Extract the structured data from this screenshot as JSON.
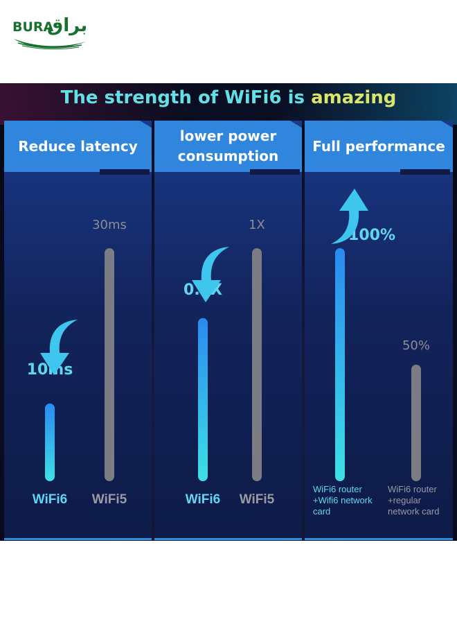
{
  "logo": {
    "latin": "BURA",
    "arabic": "براق"
  },
  "headline": {
    "part1": "The strength of WiFi6 is",
    "part2": "amazing"
  },
  "colors": {
    "accent_cyan": "#34d6f0",
    "bar_gray": "#7c7c84",
    "panel_header": "#2f86dc"
  },
  "chart_data": [
    {
      "type": "bar",
      "title": "Reduce latency",
      "categories": [
        "WiFi6",
        "WiFi5"
      ],
      "values": [
        10,
        30
      ],
      "unit": "ms",
      "data_labels": [
        "10ms",
        "30ms"
      ],
      "ylim": [
        0,
        30
      ]
    },
    {
      "type": "bar",
      "title": "lower power consumption",
      "categories": [
        "WiFi6",
        "WiFi5"
      ],
      "values": [
        0.7,
        1
      ],
      "unit": "X",
      "data_labels": [
        "0.7X",
        "1X"
      ],
      "ylim": [
        0,
        1
      ]
    },
    {
      "type": "bar",
      "title": "Full performance",
      "categories": [
        "WiFi6 router +Wifi6 network card",
        "WiFi6 router +regular network card"
      ],
      "category_lines": [
        [
          "WiFi6 router",
          "+Wifi6 network",
          "card"
        ],
        [
          "WiFi6 router",
          "+regular",
          "network card"
        ]
      ],
      "values": [
        100,
        50
      ],
      "unit": "%",
      "data_labels": [
        "100%",
        "50%"
      ],
      "ylim": [
        0,
        100
      ]
    }
  ]
}
